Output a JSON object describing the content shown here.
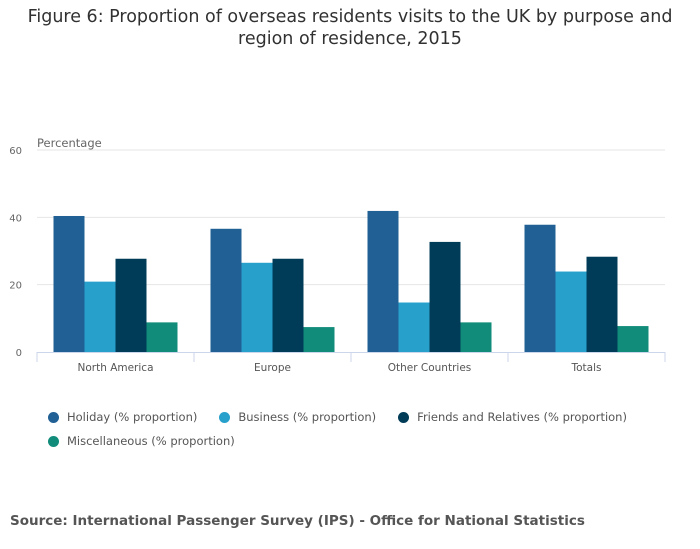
{
  "chart_data": {
    "type": "bar",
    "title": "Figure 6: Proportion of overseas residents visits to the UK by purpose and region of residence, 2015",
    "ylabel": "Percentage",
    "xlabel": "",
    "ylim": [
      0,
      60
    ],
    "yticks": [
      "0",
      "20",
      "40",
      "60"
    ],
    "grid": true,
    "legend_position": "bottom",
    "categories": [
      "North America",
      "Europe",
      "Other Countries",
      "Totals"
    ],
    "series": [
      {
        "name": "Holiday (% proportion)",
        "color": "#206095",
        "values": [
          40.4,
          36.6,
          41.9,
          37.8
        ]
      },
      {
        "name": "Business (% proportion)",
        "color": "#27a0cc",
        "values": [
          20.9,
          26.5,
          14.7,
          23.9
        ]
      },
      {
        "name": "Friends and Relatives (% proportion)",
        "color": "#003c57",
        "values": [
          27.7,
          27.7,
          32.7,
          28.3
        ]
      },
      {
        "name": "Miscellaneous (% proportion)",
        "color": "#118c7b",
        "values": [
          8.8,
          7.4,
          8.8,
          7.7
        ]
      }
    ]
  },
  "source": "Source: International Passenger Survey (IPS) - Office for National Statistics"
}
